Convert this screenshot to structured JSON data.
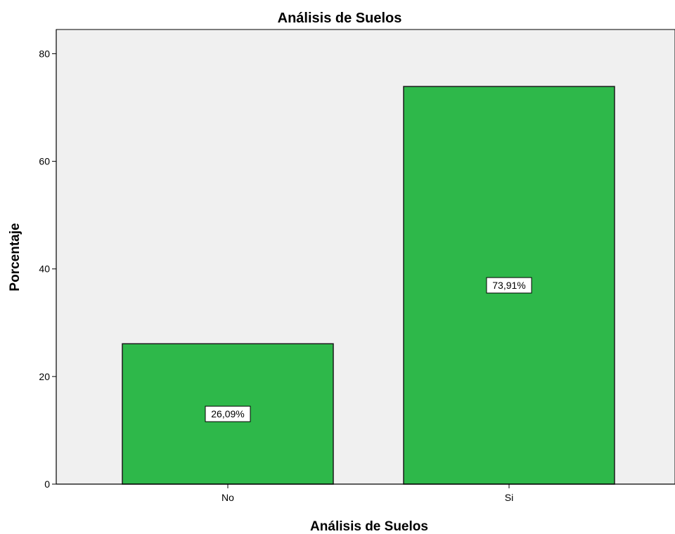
{
  "chart_data": {
    "type": "bar",
    "title": "Análisis de Suelos",
    "xlabel": "Análisis de Suelos",
    "ylabel": "Porcentaje",
    "categories": [
      "No",
      "Si"
    ],
    "values": [
      26.09,
      73.91
    ],
    "data_labels": [
      "26,09%",
      "73,91%"
    ],
    "yticks": [
      0,
      20,
      40,
      60,
      80
    ],
    "ylim": [
      0,
      84.5
    ],
    "grid": false,
    "legend": "none"
  },
  "colors": {
    "bar_fill": "#2eb84a",
    "bar_stroke": "#1a1a1a",
    "plot_background": "#f0f0f0",
    "label_box": "#ffffff"
  }
}
